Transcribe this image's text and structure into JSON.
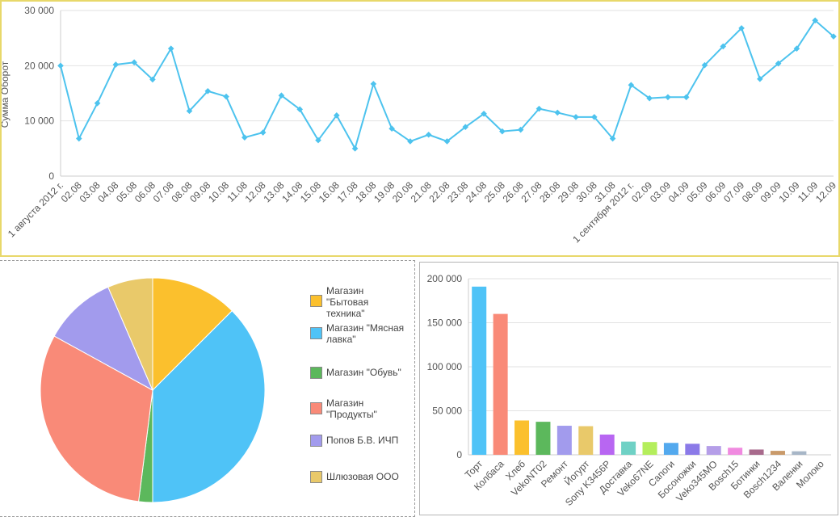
{
  "chart_data": [
    {
      "type": "line",
      "title": "",
      "xlabel": "",
      "ylabel": "Сумма Оборот",
      "ylim": [
        0,
        30000
      ],
      "yticks": [
        0,
        10000,
        20000,
        30000
      ],
      "ytick_labels": [
        "0",
        "10 000",
        "20 000",
        "30 000"
      ],
      "grid": true,
      "color": "#4dc3ee",
      "x": [
        "1 августа 2012 г.",
        "02.08",
        "03.08",
        "04.08",
        "05.08",
        "06.08",
        "07.08",
        "08.08",
        "09.08",
        "10.08",
        "11.08",
        "12.08",
        "13.08",
        "14.08",
        "15.08",
        "16.08",
        "17.08",
        "18.08",
        "19.08",
        "20.08",
        "21.08",
        "22.08",
        "23.08",
        "24.08",
        "25.08",
        "26.08",
        "27.08",
        "28.08",
        "29.08",
        "30.08",
        "31.08",
        "1 сентября 2012 г.",
        "02.09",
        "03.09",
        "04.09",
        "05.09",
        "06.09",
        "07.09",
        "08.09",
        "09.09",
        "10.09",
        "11.09",
        "12.09"
      ],
      "values": [
        20000,
        6800,
        13200,
        20200,
        20600,
        17500,
        23100,
        11800,
        15400,
        14400,
        7000,
        7900,
        14600,
        12100,
        6500,
        11000,
        5000,
        16700,
        8600,
        6300,
        7500,
        6300,
        8900,
        11300,
        8100,
        8400,
        12200,
        11500,
        10700,
        10700,
        6800,
        16500,
        14100,
        14300,
        14300,
        20100,
        23500,
        26800,
        17600,
        20400,
        23100,
        28200,
        25300
      ]
    },
    {
      "type": "pie",
      "legend_position": "right",
      "labels": [
        "Магазин \"Бытовая техника\"",
        "Магазин \"Мясная лавка\"",
        "Магазин \"Обувь\"",
        "Магазин \"Продукты\"",
        "Попов Б.В. ИЧП",
        "Шлюзовая ООО"
      ],
      "legend_lines": [
        [
          "Магазин",
          "\"Бытовая",
          "техника\""
        ],
        [
          "Магазин \"Мясная",
          "лавка\""
        ],
        [
          "Магазин \"Обувь\""
        ],
        [
          "Магазин",
          "\"Продукты\""
        ],
        [
          "Попов Б.В. ИЧП"
        ],
        [
          "Шлюзовая ООО"
        ]
      ],
      "values": [
        12.5,
        37.5,
        2.0,
        31.0,
        10.5,
        6.5
      ],
      "colors": [
        "#fbc02d",
        "#4fc3f7",
        "#5cb85c",
        "#f98a78",
        "#a29bed",
        "#e9c96a"
      ]
    },
    {
      "type": "bar",
      "categories": [
        "Торт",
        "Колбаса",
        "Хлеб",
        "VekoNT02",
        "Ремонт",
        "Йогурт",
        "Sony K3456P",
        "Доставка",
        "Veko67NE",
        "Сапоги",
        "Босоножки",
        "Veko345MO",
        "Bosch15",
        "Ботинки",
        "Bosch1234",
        "Валенки",
        "Молоко"
      ],
      "values": [
        191000,
        160000,
        39000,
        37500,
        33000,
        32500,
        23000,
        15000,
        14500,
        13500,
        12500,
        10000,
        8000,
        6000,
        4500,
        4000,
        0
      ],
      "colors": [
        "#4fc3f7",
        "#f98a78",
        "#fbc02d",
        "#5cb85c",
        "#a29bed",
        "#e9c96a",
        "#b866f2",
        "#6fd1c5",
        "#b4ee5c",
        "#53a9ee",
        "#8b7ae8",
        "#b59ee8",
        "#f08ae0",
        "#a86a8c",
        "#c99a6a",
        "#a7b6c7",
        "#b9a6bd"
      ],
      "ylim": [
        0,
        200000
      ],
      "yticks": [
        0,
        50000,
        100000,
        150000,
        200000
      ],
      "ytick_labels": [
        "0",
        "50 000",
        "100 000",
        "150 000",
        "200 000"
      ],
      "grid": true
    }
  ]
}
